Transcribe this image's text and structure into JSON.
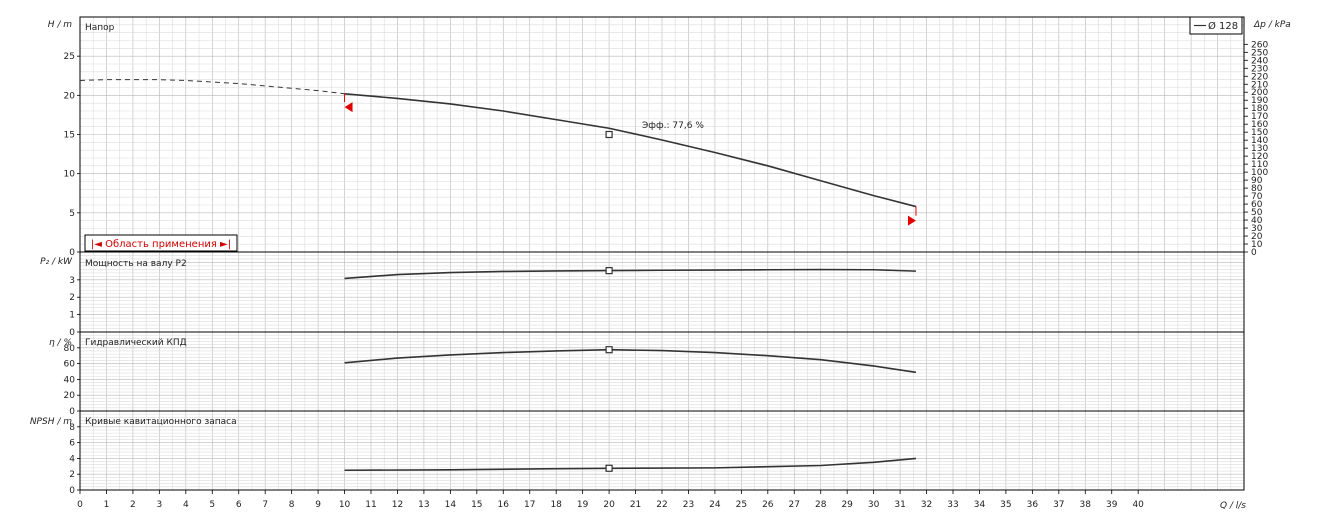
{
  "colors": {
    "curve": "#333333",
    "marker": "#e00000",
    "grid_minor": "#dcdcdc",
    "grid_major": "#b8b8b8",
    "frame": "#000000"
  },
  "legend": {
    "label": "Ø 128"
  },
  "application_range": {
    "label": "|◄ Область применения ►|"
  },
  "chart_data": [
    {
      "type": "line",
      "title": "Напор",
      "ylabel": "H / m",
      "y2label": "Δp / kPa",
      "xlim": [
        0,
        44
      ],
      "ylim": [
        0,
        30
      ],
      "yticks": [
        0,
        5,
        10,
        15,
        20,
        25
      ],
      "y2lim": [
        0,
        294.2
      ],
      "y2ticks": [
        0,
        10,
        20,
        30,
        40,
        50,
        60,
        70,
        80,
        90,
        100,
        110,
        120,
        130,
        140,
        150,
        160,
        170,
        180,
        190,
        200,
        210,
        220,
        230,
        240,
        250,
        260
      ],
      "series": [
        {
          "name": "Ø 128",
          "style": "dashed",
          "x": [
            0,
            1,
            2,
            3,
            4,
            5,
            6,
            7,
            8,
            9,
            10
          ],
          "y": [
            21.9,
            22.0,
            22.0,
            22.0,
            21.9,
            21.7,
            21.5,
            21.2,
            20.9,
            20.6,
            20.2
          ]
        },
        {
          "name": "Ø 128",
          "style": "solid",
          "x": [
            10,
            12,
            14,
            16,
            18,
            20,
            22,
            24,
            26,
            28,
            30,
            31.6
          ],
          "y": [
            20.2,
            19.6,
            18.9,
            18.0,
            16.9,
            15.8,
            14.3,
            12.7,
            11.0,
            9.1,
            7.2,
            5.8
          ]
        }
      ],
      "operating_point": {
        "x": 20,
        "y": 15.0,
        "label": "Эфф.: 77,6 %"
      },
      "range_markers": [
        {
          "x": 10,
          "y": 18.5,
          "dir": "left"
        },
        {
          "x": 31.6,
          "y": 4.0,
          "dir": "right"
        }
      ]
    },
    {
      "type": "line",
      "title": "Мощность на валу P2",
      "ylabel": "P₂ / kW",
      "xlim": [
        0,
        44
      ],
      "ylim": [
        0,
        4.6
      ],
      "yticks": [
        0,
        1,
        2,
        3
      ],
      "series": [
        {
          "name": "Ø 128",
          "style": "solid",
          "x": [
            10,
            12,
            14,
            16,
            18,
            20,
            22,
            24,
            26,
            28,
            30,
            31.6
          ],
          "y": [
            3.08,
            3.3,
            3.42,
            3.48,
            3.51,
            3.53,
            3.55,
            3.56,
            3.58,
            3.59,
            3.58,
            3.5
          ]
        }
      ],
      "operating_point": {
        "x": 20,
        "y": 3.53
      }
    },
    {
      "type": "line",
      "title": "Гидравлический КПД",
      "ylabel": "η / %",
      "xlim": [
        0,
        44
      ],
      "ylim": [
        0,
        100
      ],
      "yticks": [
        0,
        20,
        40,
        60,
        80
      ],
      "series": [
        {
          "name": "Ø 128",
          "style": "solid",
          "x": [
            10,
            12,
            14,
            16,
            18,
            20,
            22,
            24,
            26,
            28,
            30,
            31.6
          ],
          "y": [
            61,
            67,
            71,
            74,
            76,
            77.6,
            76.5,
            74,
            70,
            65,
            57,
            49
          ]
        }
      ],
      "operating_point": {
        "x": 20,
        "y": 77.6
      }
    },
    {
      "type": "line",
      "title": "Кривые кавитационного запаса",
      "ylabel": "NPSH / m",
      "xlabel": "Q / l/s",
      "xlim": [
        0,
        44
      ],
      "ylim": [
        0,
        10
      ],
      "xticks": [
        0,
        1,
        2,
        3,
        4,
        5,
        6,
        7,
        8,
        9,
        10,
        11,
        12,
        13,
        14,
        15,
        16,
        17,
        18,
        19,
        20,
        21,
        22,
        23,
        24,
        25,
        26,
        27,
        28,
        29,
        30,
        31,
        32,
        33,
        34,
        35,
        36,
        37,
        38,
        39,
        40
      ],
      "yticks": [
        0,
        2,
        4,
        6,
        8
      ],
      "series": [
        {
          "name": "Ø 128",
          "style": "solid",
          "x": [
            10,
            14,
            18,
            20,
            24,
            28,
            30,
            31.6
          ],
          "y": [
            2.5,
            2.55,
            2.7,
            2.75,
            2.8,
            3.1,
            3.5,
            4.0
          ]
        }
      ],
      "operating_point": {
        "x": 20,
        "y": 2.75
      }
    }
  ]
}
